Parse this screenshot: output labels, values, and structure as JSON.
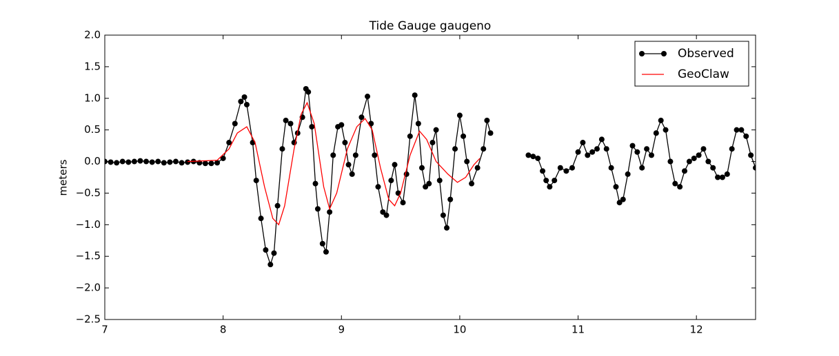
{
  "chart_data": {
    "type": "line",
    "title": "Tide Gauge gaugeno",
    "ylabel": "meters",
    "xlim": [
      7,
      12.5
    ],
    "ylim": [
      -2.5,
      2
    ],
    "xticks": [
      7,
      8,
      9,
      10,
      11,
      12
    ],
    "yticks": [
      {
        "value": -2.5,
        "label": "−2.5"
      },
      {
        "value": -2,
        "label": "−2.0"
      },
      {
        "value": -1.5,
        "label": "−1.5"
      },
      {
        "value": -1,
        "label": "−1.0"
      },
      {
        "value": -0.5,
        "label": "−0.5"
      },
      {
        "value": 0,
        "label": "0.0"
      },
      {
        "value": 0.5,
        "label": "0.5"
      },
      {
        "value": 1,
        "label": "1.0"
      },
      {
        "value": 1.5,
        "label": "1.5"
      },
      {
        "value": 2,
        "label": "2.0"
      }
    ],
    "legend": "upper right",
    "series": [
      {
        "name": "Observed",
        "color": "#000000",
        "marker": "o",
        "x": [
          7.0,
          7.05,
          7.1,
          7.15,
          7.2,
          7.25,
          7.3,
          7.35,
          7.4,
          7.45,
          7.5,
          7.55,
          7.6,
          7.65,
          7.7,
          7.75,
          7.8,
          7.85,
          7.9,
          7.95,
          8.0,
          8.05,
          8.1,
          8.15,
          8.18,
          8.2,
          8.25,
          8.28,
          8.32,
          8.36,
          8.4,
          8.43,
          8.46,
          8.5,
          8.53,
          8.57,
          8.6,
          8.63,
          8.67,
          8.7,
          8.72,
          8.75,
          8.78,
          8.8,
          8.84,
          8.87,
          8.9,
          8.93,
          8.97,
          9.0,
          9.03,
          9.06,
          9.09,
          9.12,
          9.17,
          9.22,
          9.25,
          9.28,
          9.31,
          9.35,
          9.38,
          9.42,
          9.45,
          9.48,
          9.52,
          9.55,
          9.58,
          9.62,
          9.65,
          9.68,
          9.71,
          9.74,
          9.77,
          9.8,
          9.83,
          9.86,
          9.89,
          9.92,
          9.96,
          10.0,
          10.03,
          10.06,
          10.1,
          10.15,
          10.2,
          10.23,
          10.26,
          10.4,
          10.58,
          10.62,
          10.66,
          10.7,
          10.73,
          10.76,
          10.8,
          10.85,
          10.9,
          10.95,
          11.0,
          11.04,
          11.08,
          11.12,
          11.16,
          11.2,
          11.24,
          11.28,
          11.32,
          11.35,
          11.38,
          11.42,
          11.46,
          11.5,
          11.54,
          11.58,
          11.62,
          11.66,
          11.7,
          11.74,
          11.78,
          11.82,
          11.86,
          11.9,
          11.94,
          11.98,
          12.02,
          12.06,
          12.1,
          12.14,
          12.18,
          12.22,
          12.26,
          12.3,
          12.34,
          12.38,
          12.42,
          12.46,
          12.5
        ],
        "values": [
          0.0,
          -0.01,
          -0.02,
          0.0,
          -0.01,
          0.0,
          0.01,
          0.0,
          -0.01,
          0.0,
          -0.02,
          -0.01,
          0.0,
          -0.02,
          -0.01,
          0.0,
          -0.02,
          -0.03,
          -0.03,
          -0.02,
          0.05,
          0.3,
          0.6,
          0.95,
          1.02,
          0.9,
          0.3,
          -0.3,
          -0.9,
          -1.4,
          -1.63,
          -1.45,
          -0.7,
          0.2,
          0.65,
          0.6,
          0.3,
          0.45,
          0.7,
          1.15,
          1.1,
          0.55,
          -0.35,
          -0.75,
          -1.3,
          -1.43,
          -0.8,
          0.1,
          0.55,
          0.58,
          0.3,
          -0.05,
          -0.2,
          0.1,
          0.7,
          1.03,
          0.6,
          0.1,
          -0.4,
          -0.8,
          -0.85,
          -0.3,
          -0.05,
          -0.5,
          -0.65,
          -0.2,
          0.4,
          1.05,
          0.6,
          -0.1,
          -0.4,
          -0.35,
          0.3,
          0.5,
          -0.3,
          -0.85,
          -1.05,
          -0.6,
          0.2,
          0.73,
          0.4,
          0.0,
          -0.35,
          -0.1,
          0.2,
          0.65,
          0.45,
          null,
          0.1,
          0.08,
          0.05,
          -0.15,
          -0.3,
          -0.4,
          -0.3,
          -0.1,
          -0.15,
          -0.1,
          0.15,
          0.3,
          0.1,
          0.15,
          0.2,
          0.35,
          0.2,
          -0.1,
          -0.4,
          -0.65,
          -0.6,
          -0.2,
          0.25,
          0.15,
          -0.1,
          0.2,
          0.1,
          0.45,
          0.65,
          0.5,
          0.0,
          -0.35,
          -0.4,
          -0.15,
          0.0,
          0.05,
          0.1,
          0.2,
          0.0,
          -0.1,
          -0.25,
          -0.25,
          -0.2,
          0.2,
          0.5,
          0.5,
          0.4,
          0.1,
          -0.1
        ]
      },
      {
        "name": "GeoClaw",
        "color": "#ff0000",
        "x": [
          7.7,
          7.95,
          8.05,
          8.12,
          8.2,
          8.27,
          8.35,
          8.42,
          8.47,
          8.52,
          8.6,
          8.66,
          8.71,
          8.77,
          8.85,
          8.9,
          8.96,
          9.05,
          9.13,
          9.2,
          9.26,
          9.33,
          9.4,
          9.45,
          9.5,
          9.58,
          9.66,
          9.72,
          9.8,
          9.9,
          9.98,
          10.05,
          10.12,
          10.17
        ],
        "values": [
          0.0,
          0.02,
          0.2,
          0.45,
          0.55,
          0.3,
          -0.4,
          -0.9,
          -1.0,
          -0.7,
          0.2,
          0.75,
          0.93,
          0.6,
          -0.4,
          -0.75,
          -0.5,
          0.2,
          0.55,
          0.68,
          0.5,
          -0.1,
          -0.6,
          -0.7,
          -0.5,
          0.1,
          0.48,
          0.35,
          0.0,
          -0.2,
          -0.33,
          -0.25,
          -0.05,
          0.05
        ]
      }
    ]
  }
}
